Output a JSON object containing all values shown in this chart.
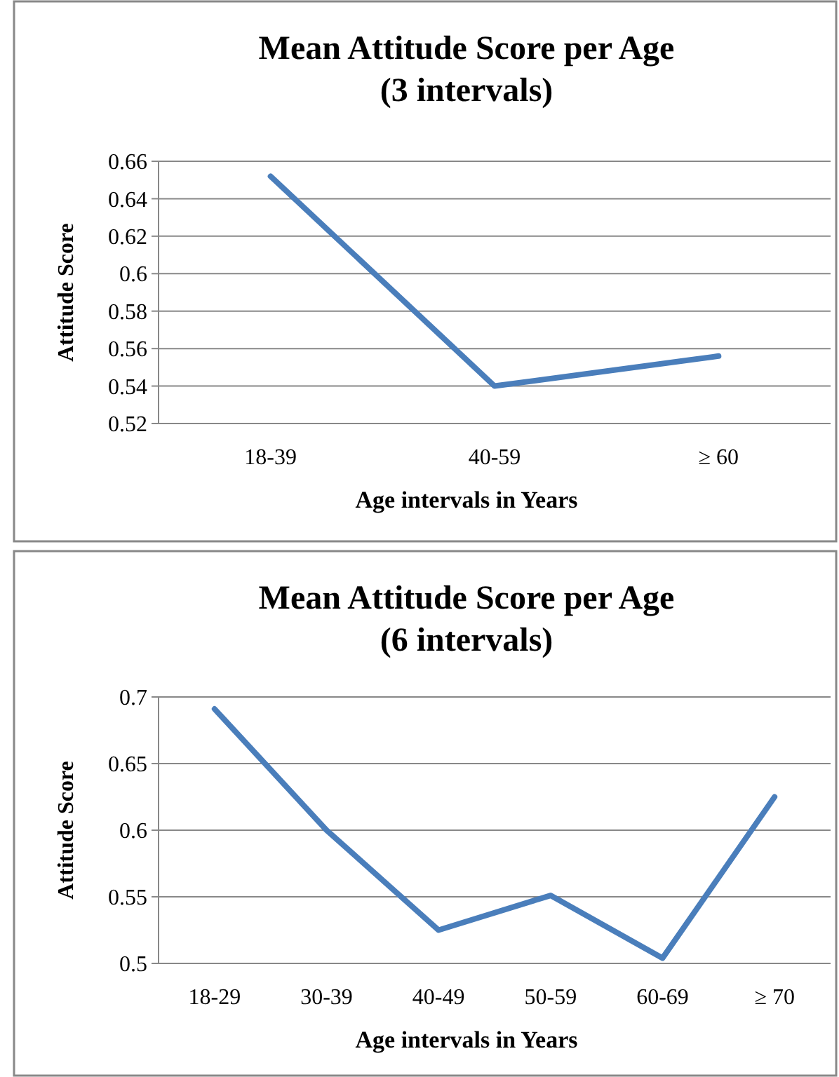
{
  "chart_data": [
    {
      "type": "line",
      "title": "Mean Attitude Score per Age\n(3 intervals)",
      "xlabel": "Age intervals in Years",
      "ylabel": "Attitude Score",
      "categories": [
        "18-39",
        "40-59",
        "≥ 60"
      ],
      "series": [
        {
          "color": "#4a7ebb",
          "values": [
            0.652,
            0.54,
            0.556
          ]
        }
      ],
      "ylim": [
        0.52,
        0.66
      ],
      "yticks": [
        0.52,
        0.54,
        0.56,
        0.58,
        0.6,
        0.62,
        0.64,
        0.66
      ],
      "grid": "y",
      "marker": "none",
      "line_style": "solid"
    },
    {
      "type": "line",
      "title": "Mean Attitude Score per Age\n(6 intervals)",
      "xlabel": "Age intervals in Years",
      "ylabel": "Attitude Score",
      "categories": [
        "18-29",
        "30-39",
        "40-49",
        "50-59",
        "60-69",
        "≥ 70"
      ],
      "series": [
        {
          "color": "#4a7ebb",
          "values": [
            0.691,
            0.6,
            0.525,
            0.551,
            0.504,
            0.625
          ]
        }
      ],
      "ylim": [
        0.5,
        0.7
      ],
      "yticks": [
        0.5,
        0.55,
        0.6,
        0.65,
        0.7
      ],
      "grid": "y",
      "marker": "none",
      "line_style": "solid"
    }
  ]
}
